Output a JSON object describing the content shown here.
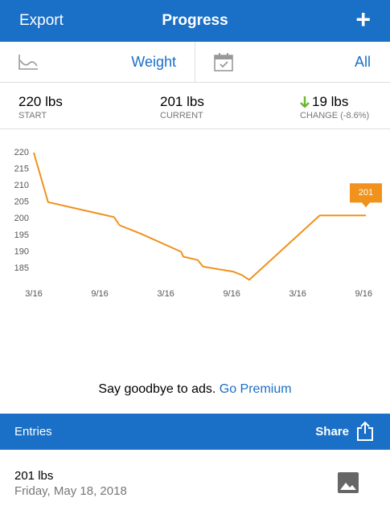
{
  "header": {
    "left": "Export",
    "title": "Progress",
    "right": "+"
  },
  "toolbar": {
    "metric": "Weight",
    "range": "All"
  },
  "stats": [
    {
      "value": "220 lbs",
      "label": "START"
    },
    {
      "value": "201 lbs",
      "label": "CURRENT"
    },
    {
      "value": "19 lbs",
      "label": "CHANGE (-8.6%)"
    }
  ],
  "chart_data": {
    "type": "line",
    "color": "#f0921c",
    "x": [
      0,
      1.3,
      7.3,
      7.8,
      9.7,
      13.4,
      13.6,
      14.9,
      15.4,
      18.1,
      18.9,
      19.6,
      26,
      30.2
    ],
    "values": [
      220,
      205,
      200.5,
      198,
      195.5,
      190,
      188.5,
      187.5,
      185.5,
      184,
      183,
      181.5,
      201,
      201
    ],
    "value_labels": [
      null,
      null,
      null,
      null,
      null,
      null,
      null,
      null,
      null,
      null,
      null,
      null,
      null,
      "201"
    ],
    "xlim": [
      0,
      30.2
    ],
    "xticks": [
      {
        "value": 0,
        "label": "3/16"
      },
      {
        "value": 6,
        "label": "9/16"
      },
      {
        "value": 12,
        "label": "3/16"
      },
      {
        "value": 18,
        "label": "9/16"
      },
      {
        "value": 24,
        "label": "3/16"
      },
      {
        "value": 30,
        "label": "9/16"
      }
    ],
    "ylim": [
      180,
      221
    ],
    "yticks": [
      185,
      190,
      195,
      200,
      205,
      210,
      215,
      220
    ],
    "grid": false
  },
  "ad": {
    "text": "Say goodbye to ads.",
    "link": "Go Premium"
  },
  "entries_bar": {
    "title": "Entries",
    "action": "Share"
  },
  "entries": [
    {
      "weight": "201 lbs",
      "date": "Friday, May 18, 2018"
    }
  ]
}
